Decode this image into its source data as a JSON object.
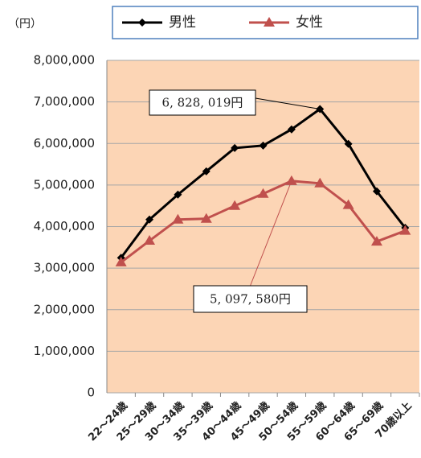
{
  "chart_data": {
    "type": "line",
    "unit_label": "（円）",
    "categories": [
      "22～24歳",
      "25～29歳",
      "30～34歳",
      "35～39歳",
      "40～44歳",
      "45～49歳",
      "50～54歳",
      "55～59歳",
      "60～64歳",
      "65～69歳",
      "70歳以上"
    ],
    "series": [
      {
        "name": "男性",
        "color": "#000000",
        "marker": "diamond",
        "values": [
          3250000,
          4170000,
          4770000,
          5330000,
          5890000,
          5950000,
          6340000,
          6828019,
          5990000,
          4850000,
          3970000
        ]
      },
      {
        "name": "女性",
        "color": "#c0504d",
        "marker": "triangle",
        "values": [
          3140000,
          3660000,
          4170000,
          4190000,
          4500000,
          4790000,
          5097580,
          5040000,
          4520000,
          3640000,
          3900000
        ]
      }
    ],
    "annotations": [
      {
        "text": "6, 828, 019円"
      },
      {
        "text": "5, 097, 580円"
      }
    ],
    "ylim": [
      0,
      8000000
    ],
    "yticks": [
      0,
      {
        "value": 1000000,
        "label": "1,000,000"
      },
      {
        "value": 2000000,
        "label": "2,000,000"
      },
      {
        "value": 3000000,
        "label": "3,000,000"
      },
      {
        "value": 4000000,
        "label": "4,000,000"
      },
      {
        "value": 5000000,
        "label": "5,000,000"
      },
      {
        "value": 6000000,
        "label": "6,000,000"
      },
      {
        "value": 7000000,
        "label": "7,000,000"
      },
      {
        "value": 8000000,
        "label": "8,000,000"
      }
    ],
    "grid": true,
    "legend": "top",
    "background": "#fcd5b5"
  }
}
